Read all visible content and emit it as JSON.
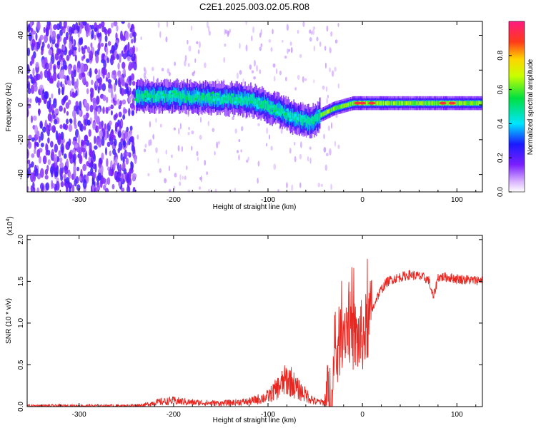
{
  "title": "C2E1.2025.003.02.05.R08",
  "colors": {
    "line": "#e8251f",
    "axes": "#000000",
    "background": "#ffffff"
  },
  "chart_data": [
    {
      "type": "heatmap",
      "xlabel": "Height of straight line (km)",
      "ylabel": "Frequency (Hz)",
      "xlim": [
        -355,
        127
      ],
      "ylim": [
        -50,
        48
      ],
      "xticks": [
        -300,
        -200,
        -100,
        0,
        100
      ],
      "yticks": [
        -40,
        -20,
        0,
        20,
        40
      ],
      "xtick_labels": [
        "-300",
        "-200",
        "-100",
        "0",
        "100"
      ],
      "ytick_labels": [
        "-40",
        "-20",
        "0",
        "20",
        "40"
      ],
      "colorbar": {
        "label": "Normalized spectral amplitude",
        "range": [
          0,
          1
        ],
        "ticks": [
          0,
          0.2,
          0.4,
          0.6,
          0.8
        ],
        "tick_labels": [
          "0.0",
          "0.2",
          "0.4",
          "0.6",
          "0.8"
        ],
        "colormap": "rainbow (violet-blue-cyan-green-yellow-red-magenta)"
      },
      "ridge": {
        "x": [
          -240,
          -200,
          -160,
          -120,
          -90,
          -70,
          -55,
          -45,
          -30,
          -10,
          0,
          40,
          80,
          127
        ],
        "frequency": [
          5,
          5,
          4,
          3,
          -3,
          -8,
          -10,
          -6,
          -2,
          1,
          1,
          1,
          1,
          1
        ]
      }
    },
    {
      "type": "line",
      "xlabel": "Height of straight line (km)",
      "ylabel": "SNR (10 * v/v)",
      "multiplier": "(x10",
      "multiplier_exp": "4",
      "multiplier_close": ")",
      "xlim": [
        -355,
        127
      ],
      "ylim": [
        0,
        2.05
      ],
      "xticks": [
        -300,
        -200,
        -100,
        0,
        100
      ],
      "yticks": [
        0,
        0.5,
        1.0,
        1.5,
        2.0
      ],
      "xtick_labels": [
        "-300",
        "-200",
        "-100",
        "0",
        "100"
      ],
      "ytick_labels": [
        "0.0",
        "0.5",
        "1.0",
        "1.5",
        "2.0"
      ],
      "series": [
        {
          "x": [
            -355,
            -300,
            -250,
            -230,
            -220,
            -200,
            -180,
            -150,
            -120,
            -100,
            -90,
            -80,
            -75,
            -70,
            -60,
            -50,
            -40,
            -35,
            -30,
            -25,
            -20,
            -15,
            -10,
            -5,
            0,
            5,
            10,
            15,
            20,
            25,
            30,
            40,
            50,
            60,
            70,
            75,
            80,
            90,
            100,
            110,
            120,
            127
          ],
          "values": [
            0.01,
            0.01,
            0.01,
            0.02,
            0.05,
            0.07,
            0.05,
            0.04,
            0.06,
            0.12,
            0.22,
            0.33,
            0.3,
            0.22,
            0.14,
            0.06,
            0.05,
            0.1,
            0.4,
            0.75,
            0.95,
            1.0,
            0.85,
            0.8,
            0.85,
            0.95,
            1.15,
            1.3,
            1.4,
            1.48,
            1.52,
            1.55,
            1.58,
            1.56,
            1.52,
            1.3,
            1.55,
            1.55,
            1.53,
            1.52,
            1.51,
            1.52
          ]
        }
      ]
    }
  ]
}
